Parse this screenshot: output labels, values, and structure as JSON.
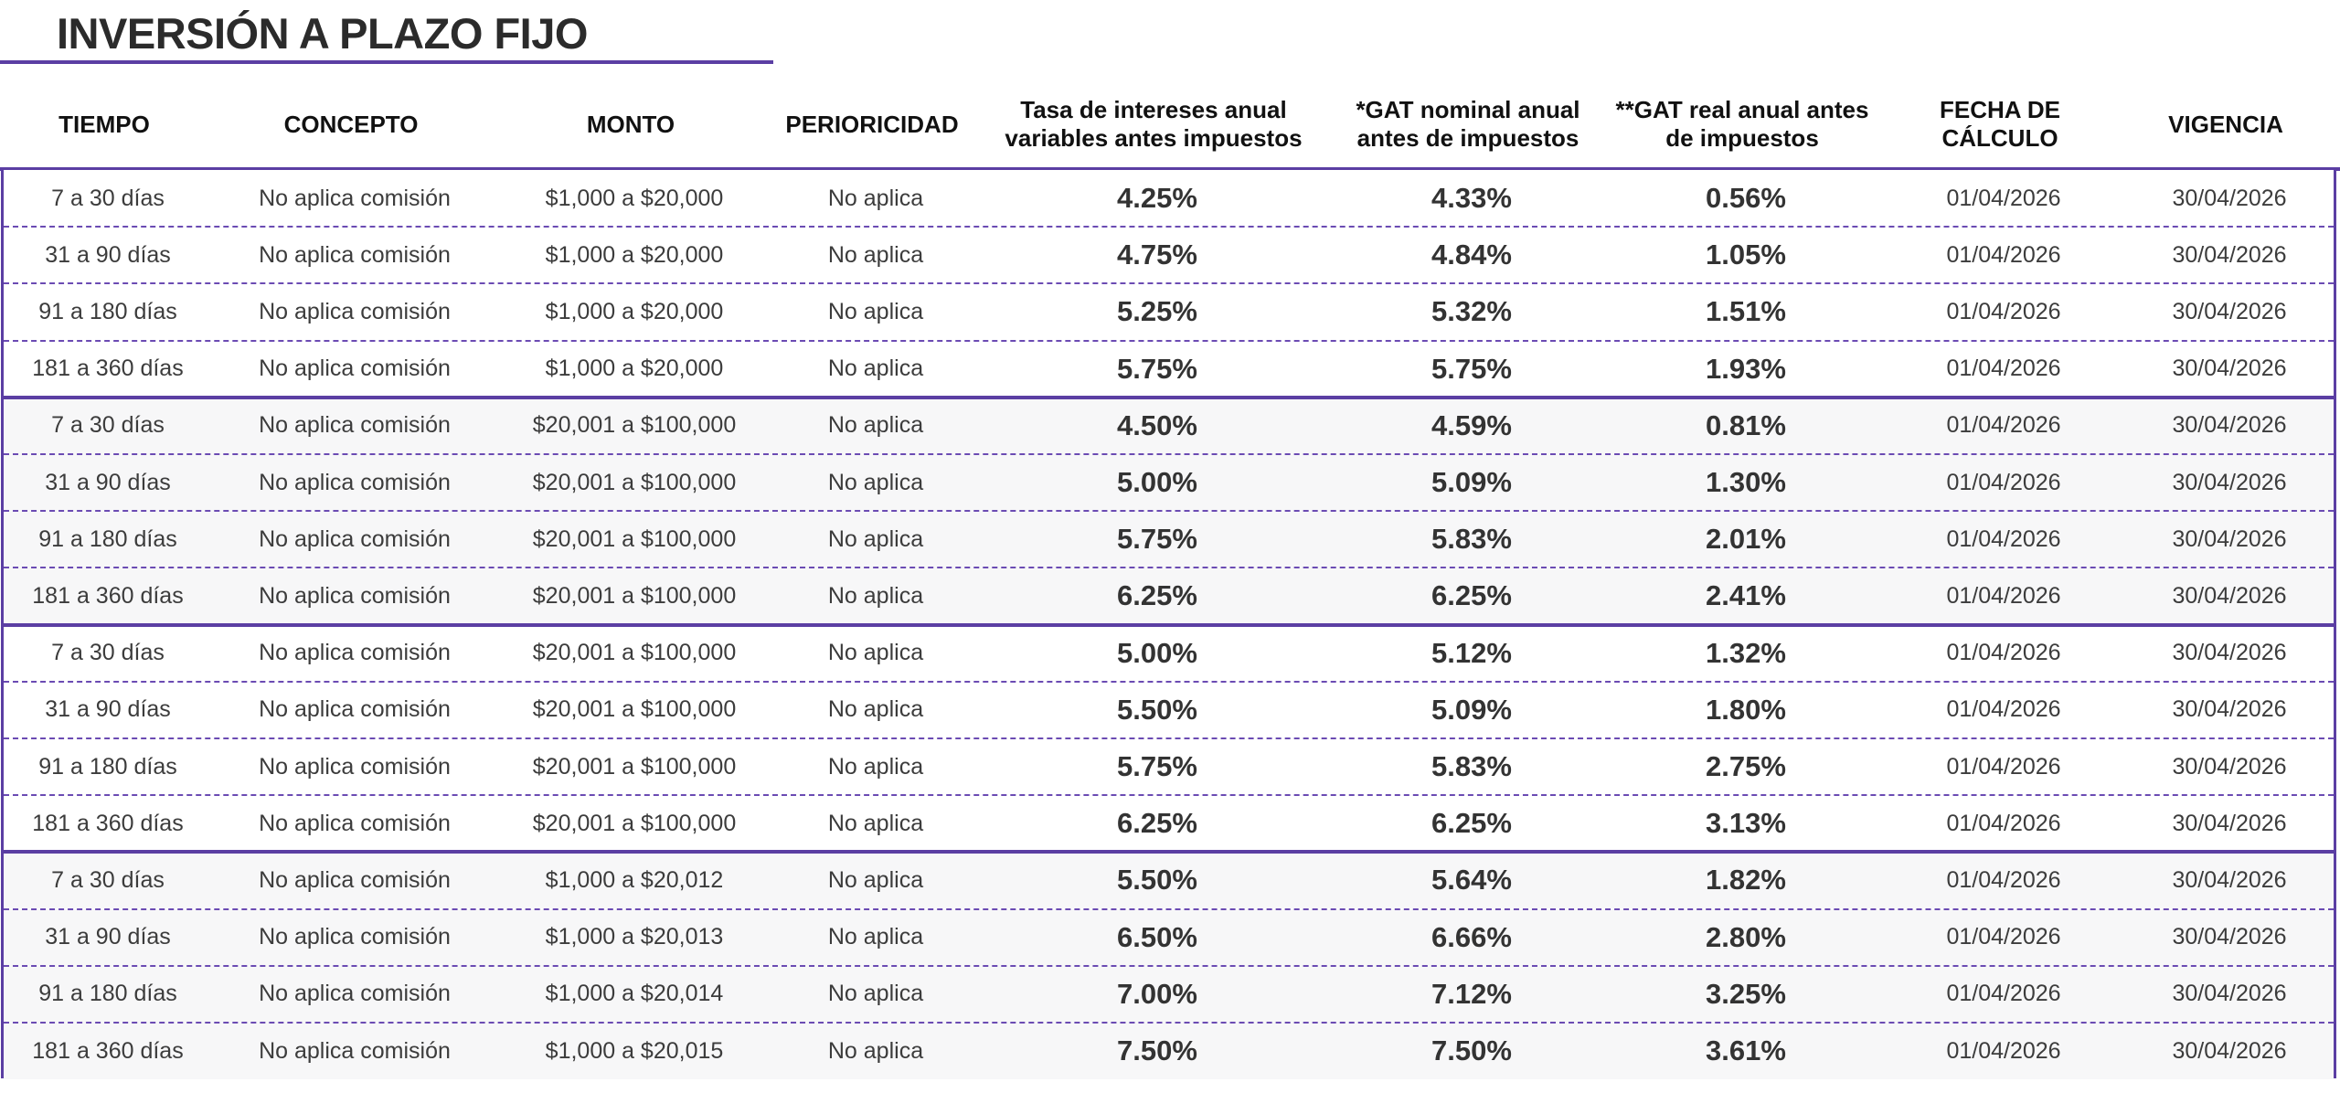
{
  "title": "INVERSIÓN A PLAZO FIJO",
  "columns": [
    "TIEMPO",
    "CONCEPTO",
    "MONTO",
    "PERIORICIDAD",
    "Tasa de intereses anual\nvariables antes impuestos",
    "*GAT nominal anual\nantes de impuestos",
    "**GAT real anual antes\nde impuestos",
    "FECHA DE\nCÁLCULO",
    "VIGENCIA"
  ],
  "rows": [
    {
      "tiempo": "7 a 30 días",
      "concepto": "No aplica comisión",
      "monto": "$1,000 a $20,000",
      "periodicidad": "No aplica",
      "tasa": "4.25%",
      "gat_nominal": "4.33%",
      "gat_real": "0.56%",
      "fecha": "01/04/2026",
      "vigencia": "30/04/2026"
    },
    {
      "tiempo": "31 a 90 días",
      "concepto": "No aplica comisión",
      "monto": "$1,000 a $20,000",
      "periodicidad": "No aplica",
      "tasa": "4.75%",
      "gat_nominal": "4.84%",
      "gat_real": "1.05%",
      "fecha": "01/04/2026",
      "vigencia": "30/04/2026"
    },
    {
      "tiempo": "91 a 180 días",
      "concepto": "No aplica comisión",
      "monto": "$1,000 a $20,000",
      "periodicidad": "No aplica",
      "tasa": "5.25%",
      "gat_nominal": "5.32%",
      "gat_real": "1.51%",
      "fecha": "01/04/2026",
      "vigencia": "30/04/2026"
    },
    {
      "tiempo": "181 a 360 días",
      "concepto": "No aplica comisión",
      "monto": "$1,000 a $20,000",
      "periodicidad": "No aplica",
      "tasa": "5.75%",
      "gat_nominal": "5.75%",
      "gat_real": "1.93%",
      "fecha": "01/04/2026",
      "vigencia": "30/04/2026"
    },
    {
      "tiempo": "7 a 30 días",
      "concepto": "No aplica comisión",
      "monto": "$20,001 a $100,000",
      "periodicidad": "No aplica",
      "tasa": "4.50%",
      "gat_nominal": "4.59%",
      "gat_real": "0.81%",
      "fecha": "01/04/2026",
      "vigencia": "30/04/2026"
    },
    {
      "tiempo": "31 a 90 días",
      "concepto": "No aplica comisión",
      "monto": "$20,001 a $100,000",
      "periodicidad": "No aplica",
      "tasa": "5.00%",
      "gat_nominal": "5.09%",
      "gat_real": "1.30%",
      "fecha": "01/04/2026",
      "vigencia": "30/04/2026"
    },
    {
      "tiempo": "91 a 180 días",
      "concepto": "No aplica comisión",
      "monto": "$20,001 a $100,000",
      "periodicidad": "No aplica",
      "tasa": "5.75%",
      "gat_nominal": "5.83%",
      "gat_real": "2.01%",
      "fecha": "01/04/2026",
      "vigencia": "30/04/2026"
    },
    {
      "tiempo": "181 a 360 días",
      "concepto": "No aplica comisión",
      "monto": "$20,001 a $100,000",
      "periodicidad": "No aplica",
      "tasa": "6.25%",
      "gat_nominal": "6.25%",
      "gat_real": "2.41%",
      "fecha": "01/04/2026",
      "vigencia": "30/04/2026"
    },
    {
      "tiempo": "7 a 30 días",
      "concepto": "No aplica comisión",
      "monto": "$20,001 a $100,000",
      "periodicidad": "No aplica",
      "tasa": "5.00%",
      "gat_nominal": "5.12%",
      "gat_real": "1.32%",
      "fecha": "01/04/2026",
      "vigencia": "30/04/2026"
    },
    {
      "tiempo": "31 a 90 días",
      "concepto": "No aplica comisión",
      "monto": "$20,001 a $100,000",
      "periodicidad": "No aplica",
      "tasa": "5.50%",
      "gat_nominal": "5.09%",
      "gat_real": "1.80%",
      "fecha": "01/04/2026",
      "vigencia": "30/04/2026"
    },
    {
      "tiempo": "91 a 180 días",
      "concepto": "No aplica comisión",
      "monto": "$20,001 a $100,000",
      "periodicidad": "No aplica",
      "tasa": "5.75%",
      "gat_nominal": "5.83%",
      "gat_real": "2.75%",
      "fecha": "01/04/2026",
      "vigencia": "30/04/2026"
    },
    {
      "tiempo": "181 a 360 días",
      "concepto": "No aplica comisión",
      "monto": "$20,001 a $100,000",
      "periodicidad": "No aplica",
      "tasa": "6.25%",
      "gat_nominal": "6.25%",
      "gat_real": "3.13%",
      "fecha": "01/04/2026",
      "vigencia": "30/04/2026"
    },
    {
      "tiempo": "7 a 30 días",
      "concepto": "No aplica comisión",
      "monto": "$1,000 a $20,012",
      "periodicidad": "No aplica",
      "tasa": "5.50%",
      "gat_nominal": "5.64%",
      "gat_real": "1.82%",
      "fecha": "01/04/2026",
      "vigencia": "30/04/2026"
    },
    {
      "tiempo": "31 a 90 días",
      "concepto": "No aplica comisión",
      "monto": "$1,000 a $20,013",
      "periodicidad": "No aplica",
      "tasa": "6.50%",
      "gat_nominal": "6.66%",
      "gat_real": "2.80%",
      "fecha": "01/04/2026",
      "vigencia": "30/04/2026"
    },
    {
      "tiempo": "91 a 180 días",
      "concepto": "No aplica comisión",
      "monto": "$1,000 a $20,014",
      "periodicidad": "No aplica",
      "tasa": "7.00%",
      "gat_nominal": "7.12%",
      "gat_real": "3.25%",
      "fecha": "01/04/2026",
      "vigencia": "30/04/2026"
    },
    {
      "tiempo": "181 a 360 días",
      "concepto": "No aplica comisión",
      "monto": "$1,000 a $20,015",
      "periodicidad": "No aplica",
      "tasa": "7.50%",
      "gat_nominal": "7.50%",
      "gat_real": "3.61%",
      "fecha": "01/04/2026",
      "vigencia": "30/04/2026"
    }
  ],
  "colors": {
    "accent": "#5b3ea3",
    "text": "#333333",
    "stripe": "#f7f7f8"
  }
}
